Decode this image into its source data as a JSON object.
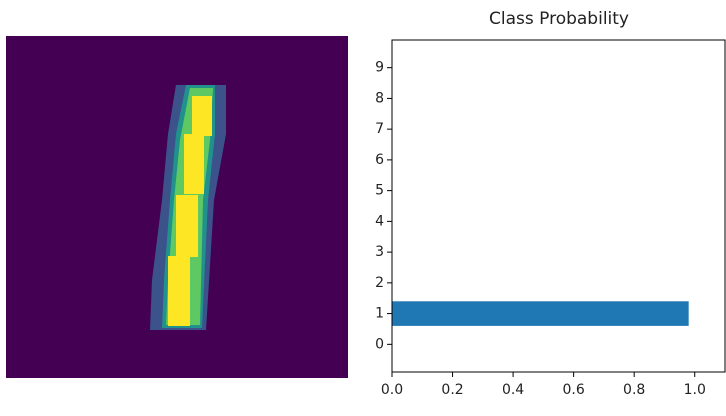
{
  "chart_data": {
    "type": "barh",
    "title": "Class Probability",
    "categories": [
      "0",
      "1",
      "2",
      "3",
      "4",
      "5",
      "6",
      "7",
      "8",
      "9"
    ],
    "values": [
      0,
      0.98,
      0,
      0,
      0,
      0,
      0,
      0,
      0,
      0
    ],
    "color": "#1f77b4",
    "xlim": [
      0,
      1.1
    ],
    "xticks": [
      {
        "value": 0,
        "label": "0.0"
      },
      {
        "value": 0.2,
        "label": "0.2"
      },
      {
        "value": 0.4,
        "label": "0.4"
      },
      {
        "value": 0.6,
        "label": "0.6"
      },
      {
        "value": 0.8,
        "label": "0.8"
      },
      {
        "value": 1,
        "label": "1.0"
      }
    ],
    "ylim": [
      -0.9,
      9.9
    ]
  }
}
